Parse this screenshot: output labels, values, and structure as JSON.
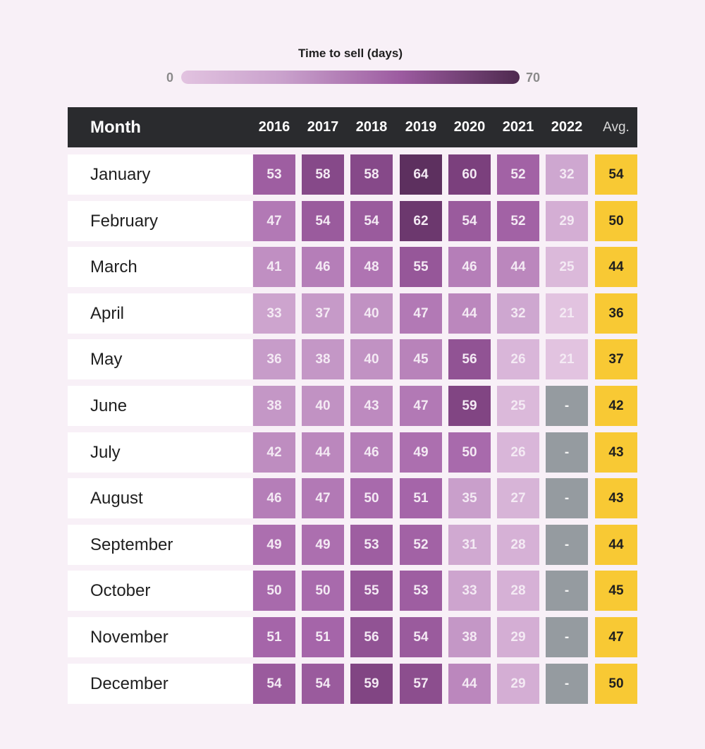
{
  "legend": {
    "title": "Time to sell (days)",
    "min_label": "0",
    "max_label": "70",
    "min": 0,
    "max": 70
  },
  "header": {
    "month_label": "Month",
    "avg_label": "Avg."
  },
  "colors": {
    "scale_low": "#e2c3e0",
    "scale_high": "#4e2a4f",
    "avg": "#f8c934",
    "missing": "#959ba0",
    "header_bg": "#2a2b2e"
  },
  "chart_data": {
    "type": "heatmap",
    "title": "Time to sell (days)",
    "years": [
      "2016",
      "2017",
      "2018",
      "2019",
      "2020",
      "2021",
      "2022"
    ],
    "months": [
      "January",
      "February",
      "March",
      "April",
      "May",
      "June",
      "July",
      "August",
      "September",
      "October",
      "November",
      "December"
    ],
    "values": [
      [
        53,
        58,
        58,
        64,
        60,
        52,
        32
      ],
      [
        47,
        54,
        54,
        62,
        54,
        52,
        29
      ],
      [
        41,
        46,
        48,
        55,
        46,
        44,
        25
      ],
      [
        33,
        37,
        40,
        47,
        44,
        32,
        21
      ],
      [
        36,
        38,
        40,
        45,
        56,
        26,
        21
      ],
      [
        38,
        40,
        43,
        47,
        59,
        25,
        null
      ],
      [
        42,
        44,
        46,
        49,
        50,
        26,
        null
      ],
      [
        46,
        47,
        50,
        51,
        35,
        27,
        null
      ],
      [
        49,
        49,
        53,
        52,
        31,
        28,
        null
      ],
      [
        50,
        50,
        55,
        53,
        33,
        28,
        null
      ],
      [
        51,
        51,
        56,
        54,
        38,
        29,
        null
      ],
      [
        54,
        54,
        59,
        57,
        44,
        29,
        null
      ]
    ],
    "averages": [
      54,
      50,
      44,
      36,
      37,
      42,
      43,
      43,
      44,
      45,
      47,
      50
    ],
    "missing_label": "-",
    "color_range": [
      0,
      70
    ]
  }
}
